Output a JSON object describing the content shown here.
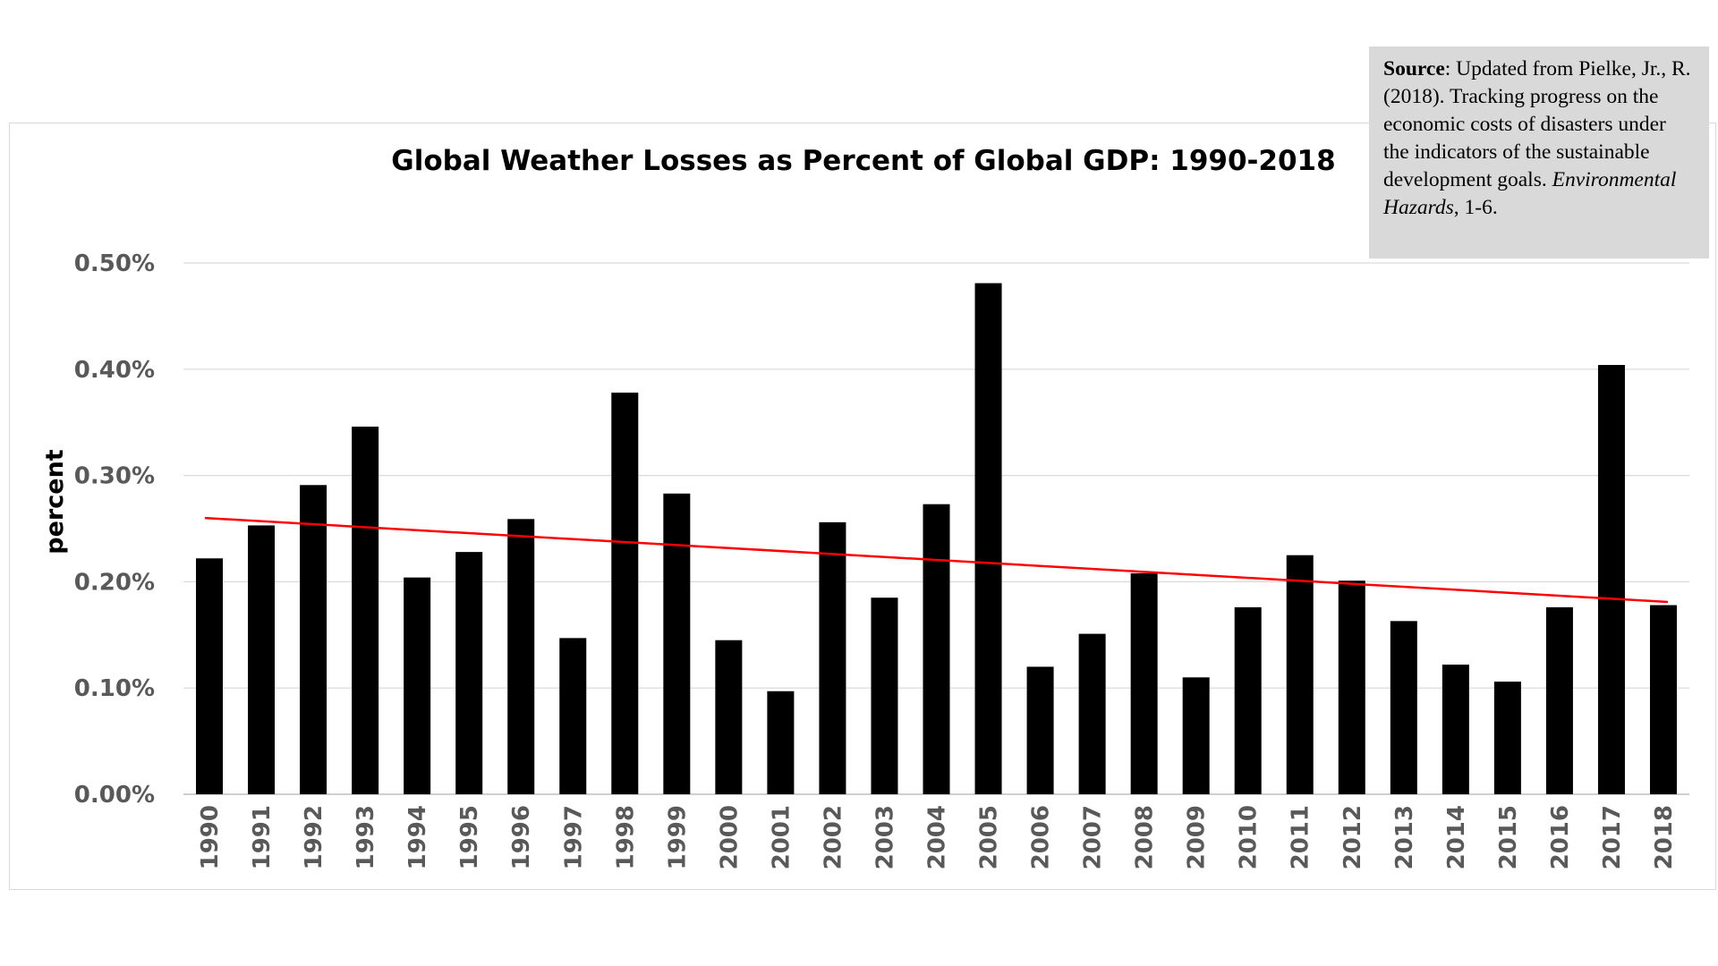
{
  "source_note": {
    "label": "Source",
    "text_before": ": Updated from Pielke, Jr., R. (2018). Tracking progress on the economic costs of disasters under the indicators of the sustainable development goals. ",
    "journal": "Environmental Hazards",
    "text_after": ", 1-6."
  },
  "chart_data": {
    "type": "bar",
    "title": "Global Weather Losses as Percent of Global GDP: 1990-2018",
    "xlabel": "",
    "ylabel": "percent",
    "ylim": [
      0,
      0.5
    ],
    "y_ticks": [
      0,
      0.1,
      0.2,
      0.3,
      0.4,
      0.5
    ],
    "y_tick_labels": [
      "0.00%",
      "0.10%",
      "0.20%",
      "0.30%",
      "0.40%",
      "0.50%"
    ],
    "grid": true,
    "categories": [
      "1990",
      "1991",
      "1992",
      "1993",
      "1994",
      "1995",
      "1996",
      "1997",
      "1998",
      "1999",
      "2000",
      "2001",
      "2002",
      "2003",
      "2004",
      "2005",
      "2006",
      "2007",
      "2008",
      "2009",
      "2010",
      "2011",
      "2012",
      "2013",
      "2014",
      "2015",
      "2016",
      "2017",
      "2018"
    ],
    "values": [
      0.222,
      0.253,
      0.291,
      0.346,
      0.204,
      0.228,
      0.259,
      0.147,
      0.378,
      0.283,
      0.145,
      0.097,
      0.256,
      0.185,
      0.273,
      0.481,
      0.12,
      0.151,
      0.208,
      0.11,
      0.176,
      0.225,
      0.201,
      0.163,
      0.122,
      0.106,
      0.176,
      0.404,
      0.178
    ],
    "bar_color": "#000000",
    "trendline": {
      "name": "linear trend",
      "color": "#ff0000",
      "start": {
        "x": "1990",
        "y": 0.26
      },
      "end": {
        "x": "2018",
        "y": 0.181
      }
    }
  }
}
